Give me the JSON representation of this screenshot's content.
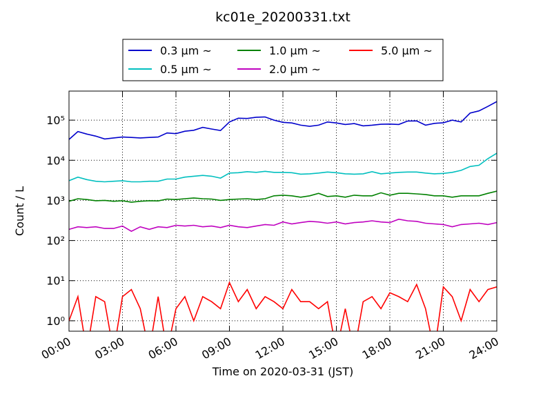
{
  "chart_data": {
    "type": "line",
    "title": "kc01e_20200331.txt",
    "xlabel": "Time on 2020-03-31 (JST)",
    "ylabel": "Count / L",
    "log_y": true,
    "grid": true,
    "legend": "top",
    "x": [
      0,
      0.5,
      1,
      1.5,
      2,
      2.5,
      3,
      3.5,
      4,
      4.5,
      5,
      5.5,
      6,
      6.5,
      7,
      7.5,
      8,
      8.5,
      9,
      9.5,
      10,
      10.5,
      11,
      11.5,
      12,
      12.5,
      13,
      13.5,
      14,
      14.5,
      15,
      15.5,
      16,
      16.5,
      17,
      17.5,
      18,
      18.5,
      19,
      19.5,
      20,
      20.5,
      21,
      21.5,
      22,
      22.5,
      23,
      23.5,
      24
    ],
    "xlim": [
      0,
      24
    ],
    "xticks": [
      {
        "value": 0,
        "label": "00:00"
      },
      {
        "value": 3,
        "label": "03:00"
      },
      {
        "value": 6,
        "label": "06:00"
      },
      {
        "value": 9,
        "label": "09:00"
      },
      {
        "value": 12,
        "label": "12:00"
      },
      {
        "value": 15,
        "label": "15:00"
      },
      {
        "value": 18,
        "label": "18:00"
      },
      {
        "value": 21,
        "label": "21:00"
      },
      {
        "value": 24,
        "label": "24:00"
      }
    ],
    "ylim": [
      0.55,
      530000
    ],
    "yticks": [
      {
        "value": 1,
        "label": "10⁰"
      },
      {
        "value": 10,
        "label": "10¹"
      },
      {
        "value": 100,
        "label": "10²"
      },
      {
        "value": 1000,
        "label": "10³"
      },
      {
        "value": 10000,
        "label": "10⁴"
      },
      {
        "value": 100000,
        "label": "10⁵"
      }
    ],
    "series": [
      {
        "name": "0.3 μm ~",
        "color": "#0000cc",
        "values": [
          33000,
          52000,
          45000,
          40000,
          34000,
          36000,
          38000,
          37000,
          36000,
          37000,
          38000,
          48000,
          46000,
          53000,
          56000,
          66000,
          60000,
          55000,
          90000,
          112000,
          110000,
          118000,
          120000,
          100000,
          88000,
          85000,
          75000,
          70000,
          75000,
          90000,
          85000,
          78000,
          82000,
          72000,
          75000,
          79000,
          80000,
          78000,
          95000,
          96000,
          75000,
          83000,
          86000,
          100000,
          90000,
          150000,
          170000,
          220000,
          290000
        ]
      },
      {
        "name": "0.5 μm ~",
        "color": "#00bfbf",
        "values": [
          3100,
          3800,
          3300,
          3000,
          2900,
          3000,
          3100,
          2900,
          2900,
          3000,
          3000,
          3400,
          3400,
          3800,
          4000,
          4200,
          4000,
          3600,
          4800,
          4900,
          5200,
          5000,
          5300,
          5000,
          5000,
          4900,
          4500,
          4600,
          4800,
          5100,
          4900,
          4600,
          4500,
          4600,
          5200,
          4600,
          4800,
          5000,
          5100,
          5100,
          4800,
          4600,
          4700,
          5000,
          5600,
          7000,
          7500,
          11000,
          15000
        ]
      },
      {
        "name": "1.0 μm ~",
        "color": "#008000",
        "values": [
          950,
          1100,
          1050,
          980,
          1000,
          950,
          980,
          900,
          950,
          980,
          970,
          1080,
          1050,
          1100,
          1150,
          1100,
          1080,
          1000,
          1050,
          1080,
          1100,
          1050,
          1100,
          1300,
          1350,
          1300,
          1200,
          1300,
          1500,
          1250,
          1300,
          1200,
          1350,
          1300,
          1300,
          1550,
          1350,
          1500,
          1500,
          1450,
          1400,
          1300,
          1300,
          1200,
          1300,
          1300,
          1300,
          1500,
          1700
        ]
      },
      {
        "name": "2.0 μm ~",
        "color": "#bf00bf",
        "values": [
          190,
          220,
          210,
          220,
          200,
          200,
          230,
          170,
          220,
          190,
          220,
          210,
          240,
          230,
          240,
          220,
          230,
          210,
          240,
          220,
          210,
          230,
          250,
          240,
          290,
          260,
          280,
          300,
          290,
          270,
          290,
          260,
          280,
          290,
          310,
          290,
          280,
          340,
          310,
          300,
          270,
          260,
          250,
          220,
          250,
          260,
          270,
          250,
          280
        ]
      },
      {
        "name": "5.0 μm ~",
        "color": "#ff0000",
        "values": [
          1,
          4,
          0,
          4,
          3,
          0,
          4,
          6,
          2,
          0,
          4,
          0,
          2,
          4,
          1,
          4,
          3,
          2,
          9,
          3,
          6,
          2,
          4,
          3,
          2,
          6,
          3,
          3,
          2,
          3,
          0,
          2,
          0,
          3,
          4,
          2,
          5,
          4,
          3,
          8,
          2,
          0,
          7,
          4,
          1,
          6,
          3,
          6,
          7
        ]
      }
    ]
  }
}
